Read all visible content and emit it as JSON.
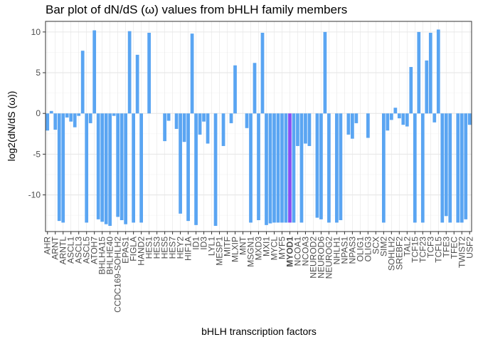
{
  "chart_data": {
    "type": "bar",
    "title": "Bar plot of dN/dS (ω) values from bHLH family members",
    "xlabel": "bHLH transcription factors",
    "ylabel": "log2(dN/dS (ω))",
    "ylim": [
      -14.5,
      11.3
    ],
    "yticks": [
      -10,
      -5,
      0,
      5,
      10
    ],
    "grid": true,
    "highlight_label": "MYOD1",
    "colors": {
      "bar": "#5aa5f2",
      "highlight": "#8a4df3",
      "grid_major": "#e6e6e6",
      "grid_minor": "#f3f3f3",
      "border": "#333333"
    },
    "categories": [
      "AHR",
      "ARNT",
      "ARNTL",
      "ASCL1",
      "ASCL3",
      "ASCL5",
      "ATOH7",
      "BHLHA15",
      "BHLHE40",
      "CCDC169-SOHLH2",
      "EPAS1",
      "FIGLA",
      "HAND2",
      "HES1",
      "HES3",
      "HES5",
      "HES7",
      "HEY2",
      "HIF1A",
      "ID1",
      "ID3",
      "LYL1",
      "MESP1",
      "MITF",
      "MLXIP",
      "MNT",
      "MSGN1",
      "MXD3",
      "MXI1",
      "MYCL",
      "MYF5",
      "MYOD1",
      "NCOA1",
      "NCOA3",
      "NEUROD2",
      "NEUROD6",
      "NEUROG2",
      "NHLH1",
      "NPAS1",
      "NPAS3",
      "OLIG1",
      "OLIG3",
      "SCX",
      "SIM2",
      "SOHLH2",
      "SREBF2",
      "TAL2",
      "TCF15",
      "TCF23",
      "TCF3",
      "TCFL5",
      "TFE3",
      "TFEC",
      "TWIST2",
      "USF2"
    ],
    "bars": [
      {
        "pos": 1,
        "label": "AHR",
        "value": -2.1
      },
      {
        "pos": 2,
        "label": "",
        "value": 0.3
      },
      {
        "pos": 3,
        "label": "ARNT",
        "value": -2.0
      },
      {
        "pos": 4,
        "label": "",
        "value": -13.2
      },
      {
        "pos": 5,
        "label": "ARNTL",
        "value": -13.4
      },
      {
        "pos": 6,
        "label": "",
        "value": -0.5
      },
      {
        "pos": 7,
        "label": "ASCL1",
        "value": -1.0
      },
      {
        "pos": 8,
        "label": "",
        "value": -1.7
      },
      {
        "pos": 9,
        "label": "ASCL3",
        "value": -0.3
      },
      {
        "pos": 10,
        "label": "",
        "value": 7.7
      },
      {
        "pos": 11,
        "label": "ASCL5",
        "value": -13.4
      },
      {
        "pos": 12,
        "label": "",
        "value": -1.2
      },
      {
        "pos": 13,
        "label": "ATOH7",
        "value": 10.2
      },
      {
        "pos": 14,
        "label": "",
        "value": -13.0
      },
      {
        "pos": 15,
        "label": "BHLHA15",
        "value": -13.3
      },
      {
        "pos": 16,
        "label": "",
        "value": -13.6
      },
      {
        "pos": 17,
        "label": "BHLHE40",
        "value": -13.8
      },
      {
        "pos": 18,
        "label": "",
        "value": -0.3
      },
      {
        "pos": 19,
        "label": "CCDC169-SOHLH2",
        "value": -12.7
      },
      {
        "pos": 20,
        "label": "",
        "value": -13.1
      },
      {
        "pos": 21,
        "label": "EPAS1",
        "value": -13.6
      },
      {
        "pos": 22,
        "label": "",
        "value": 10.1
      },
      {
        "pos": 23,
        "label": "FIGLA",
        "value": -13.4
      },
      {
        "pos": 24,
        "label": "",
        "value": 7.2
      },
      {
        "pos": 25,
        "label": "HAND2",
        "value": -13.4
      },
      {
        "pos": 26,
        "label": "",
        "value": 0
      },
      {
        "pos": 27,
        "label": "HES1",
        "value": 9.9
      },
      {
        "pos": 28,
        "label": "",
        "value": 0
      },
      {
        "pos": 29,
        "label": "HES3",
        "value": 0
      },
      {
        "pos": 30,
        "label": "",
        "value": 0
      },
      {
        "pos": 31,
        "label": "HES5",
        "value": -3.4
      },
      {
        "pos": 32,
        "label": "",
        "value": -0.9
      },
      {
        "pos": 33,
        "label": "HES7",
        "value": 0
      },
      {
        "pos": 34,
        "label": "",
        "value": -1.9
      },
      {
        "pos": 35,
        "label": "HEY2",
        "value": -12.3
      },
      {
        "pos": 36,
        "label": "",
        "value": -3.5
      },
      {
        "pos": 37,
        "label": "HIF1A",
        "value": -13.2
      },
      {
        "pos": 38,
        "label": "",
        "value": 9.8
      },
      {
        "pos": 39,
        "label": "ID1",
        "value": -13.7
      },
      {
        "pos": 40,
        "label": "",
        "value": -2.6
      },
      {
        "pos": 41,
        "label": "ID3",
        "value": -1.0
      },
      {
        "pos": 42,
        "label": "",
        "value": -3.7
      },
      {
        "pos": 43,
        "label": "LYL1",
        "value": 0
      },
      {
        "pos": 44,
        "label": "",
        "value": -13.8
      },
      {
        "pos": 45,
        "label": "MESP1",
        "value": 0
      },
      {
        "pos": 46,
        "label": "",
        "value": -4.0
      },
      {
        "pos": 47,
        "label": "MITF",
        "value": 0
      },
      {
        "pos": 48,
        "label": "",
        "value": -1.2
      },
      {
        "pos": 49,
        "label": "MLXIP",
        "value": 5.9
      },
      {
        "pos": 50,
        "label": "",
        "value": 0
      },
      {
        "pos": 51,
        "label": "MNT",
        "value": 0
      },
      {
        "pos": 52,
        "label": "",
        "value": -1.8
      },
      {
        "pos": 53,
        "label": "MSGN1",
        "value": -13.4
      },
      {
        "pos": 54,
        "label": "",
        "value": 6.2
      },
      {
        "pos": 55,
        "label": "MXD3",
        "value": -13.1
      },
      {
        "pos": 56,
        "label": "",
        "value": 9.9
      },
      {
        "pos": 57,
        "label": "MXI1",
        "value": -13.7
      },
      {
        "pos": 58,
        "label": "",
        "value": -13.5
      },
      {
        "pos": 59,
        "label": "MYCL",
        "value": -13.4
      },
      {
        "pos": 60,
        "label": "",
        "value": -13.4
      },
      {
        "pos": 61,
        "label": "MYF5",
        "value": -13.4
      },
      {
        "pos": 62,
        "label": "",
        "value": -13.4
      },
      {
        "pos": 63,
        "label": "MYOD1",
        "value": -13.4
      },
      {
        "pos": 64,
        "label": "",
        "value": -13.4
      },
      {
        "pos": 65,
        "label": "NCOA1",
        "value": -4.0
      },
      {
        "pos": 66,
        "label": "",
        "value": -13.4
      },
      {
        "pos": 67,
        "label": "NCOA3",
        "value": -3.7
      },
      {
        "pos": 68,
        "label": "",
        "value": -4.0
      },
      {
        "pos": 69,
        "label": "NEUROD2",
        "value": 0
      },
      {
        "pos": 70,
        "label": "",
        "value": -12.8
      },
      {
        "pos": 71,
        "label": "NEUROD6",
        "value": -13.0
      },
      {
        "pos": 72,
        "label": "",
        "value": 10.0
      },
      {
        "pos": 73,
        "label": "NEUROG2",
        "value": -13.4
      },
      {
        "pos": 74,
        "label": "",
        "value": 0
      },
      {
        "pos": 75,
        "label": "NHLH1",
        "value": -13.4
      },
      {
        "pos": 76,
        "label": "",
        "value": -13.1
      },
      {
        "pos": 77,
        "label": "NPAS1",
        "value": 0
      },
      {
        "pos": 78,
        "label": "",
        "value": -2.6
      },
      {
        "pos": 79,
        "label": "NPAS3",
        "value": -3.1
      },
      {
        "pos": 80,
        "label": "",
        "value": -1.2
      },
      {
        "pos": 81,
        "label": "OLIG1",
        "value": 0
      },
      {
        "pos": 82,
        "label": "",
        "value": 0
      },
      {
        "pos": 83,
        "label": "OLIG3",
        "value": -3.0
      },
      {
        "pos": 84,
        "label": "",
        "value": 0
      },
      {
        "pos": 85,
        "label": "SCX",
        "value": 0
      },
      {
        "pos": 86,
        "label": "",
        "value": 0
      },
      {
        "pos": 87,
        "label": "SIM2",
        "value": -13.4
      },
      {
        "pos": 88,
        "label": "",
        "value": -2.1
      },
      {
        "pos": 89,
        "label": "SOHLH2",
        "value": -0.8
      },
      {
        "pos": 90,
        "label": "",
        "value": 0.7
      },
      {
        "pos": 91,
        "label": "SREBF2",
        "value": -0.6
      },
      {
        "pos": 92,
        "label": "",
        "value": -1.4
      },
      {
        "pos": 93,
        "label": "TAL2",
        "value": -1.6
      },
      {
        "pos": 94,
        "label": "",
        "value": 5.7
      },
      {
        "pos": 95,
        "label": "TCF15",
        "value": -13.4
      },
      {
        "pos": 96,
        "label": "",
        "value": 10.0
      },
      {
        "pos": 97,
        "label": "TCF23",
        "value": -13.4
      },
      {
        "pos": 98,
        "label": "",
        "value": 6.5
      },
      {
        "pos": 99,
        "label": "TCF3",
        "value": 9.9
      },
      {
        "pos": 100,
        "label": "",
        "value": -1.1
      },
      {
        "pos": 101,
        "label": "TCFL5",
        "value": 10.3
      },
      {
        "pos": 102,
        "label": "",
        "value": -13.4
      },
      {
        "pos": 103,
        "label": "TFE3",
        "value": -12.6
      },
      {
        "pos": 104,
        "label": "",
        "value": -13.4
      },
      {
        "pos": 105,
        "label": "TFEC",
        "value": 0
      },
      {
        "pos": 106,
        "label": "",
        "value": -13.4
      },
      {
        "pos": 107,
        "label": "TWIST2",
        "value": -13.4
      },
      {
        "pos": 108,
        "label": "",
        "value": -13.0
      },
      {
        "pos": 109,
        "label": "USF2",
        "value": -1.4
      }
    ]
  }
}
